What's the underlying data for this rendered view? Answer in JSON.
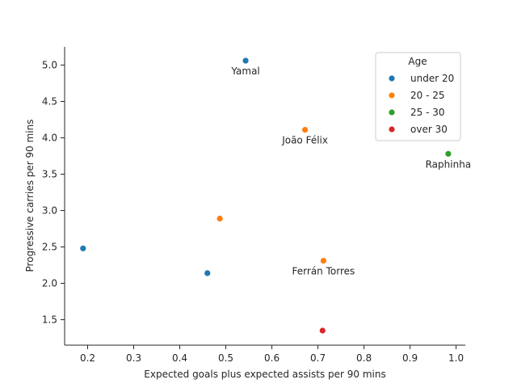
{
  "chart_data": {
    "type": "scatter",
    "title": "",
    "xlabel": "Expected goals plus expected assists per 90 mins",
    "ylabel": "Progressive carries per 90 mins",
    "xlim": [
      0.15,
      1.02
    ],
    "ylim": [
      1.15,
      5.25
    ],
    "xticks": [
      0.2,
      0.3,
      0.4,
      0.5,
      0.6,
      0.7,
      0.8,
      0.9,
      1.0
    ],
    "xtick_labels": [
      "0.2",
      "0.3",
      "0.4",
      "0.5",
      "0.6",
      "0.7",
      "0.8",
      "0.9",
      "1.0"
    ],
    "yticks": [
      1.5,
      2.0,
      2.5,
      3.0,
      3.5,
      4.0,
      4.5,
      5.0
    ],
    "ytick_labels": [
      "1.5",
      "2.0",
      "2.5",
      "3.0",
      "3.5",
      "4.0",
      "4.5",
      "5.0"
    ],
    "grid": false,
    "legend": {
      "title": "Age",
      "placement": "top-right",
      "entries": [
        "under 20",
        "20 - 25",
        "25 - 30",
        "over 30"
      ]
    },
    "series": [
      {
        "name": "under 20",
        "color": "#1f77b4",
        "points": [
          {
            "x": 0.543,
            "y": 5.06,
            "label": "Yamal"
          },
          {
            "x": 0.19,
            "y": 2.48,
            "label": ""
          },
          {
            "x": 0.46,
            "y": 2.14,
            "label": ""
          }
        ]
      },
      {
        "name": "20 - 25",
        "color": "#ff7f0e",
        "points": [
          {
            "x": 0.672,
            "y": 4.11,
            "label": "João Félix"
          },
          {
            "x": 0.487,
            "y": 2.89,
            "label": ""
          },
          {
            "x": 0.712,
            "y": 2.31,
            "label": "Ferrán Torres"
          }
        ]
      },
      {
        "name": "25 - 30",
        "color": "#2ca02c",
        "points": [
          {
            "x": 0.983,
            "y": 3.78,
            "label": "Raphinha"
          }
        ]
      },
      {
        "name": "over 30",
        "color": "#d62728",
        "points": [
          {
            "x": 0.71,
            "y": 1.35,
            "label": ""
          }
        ]
      }
    ]
  }
}
